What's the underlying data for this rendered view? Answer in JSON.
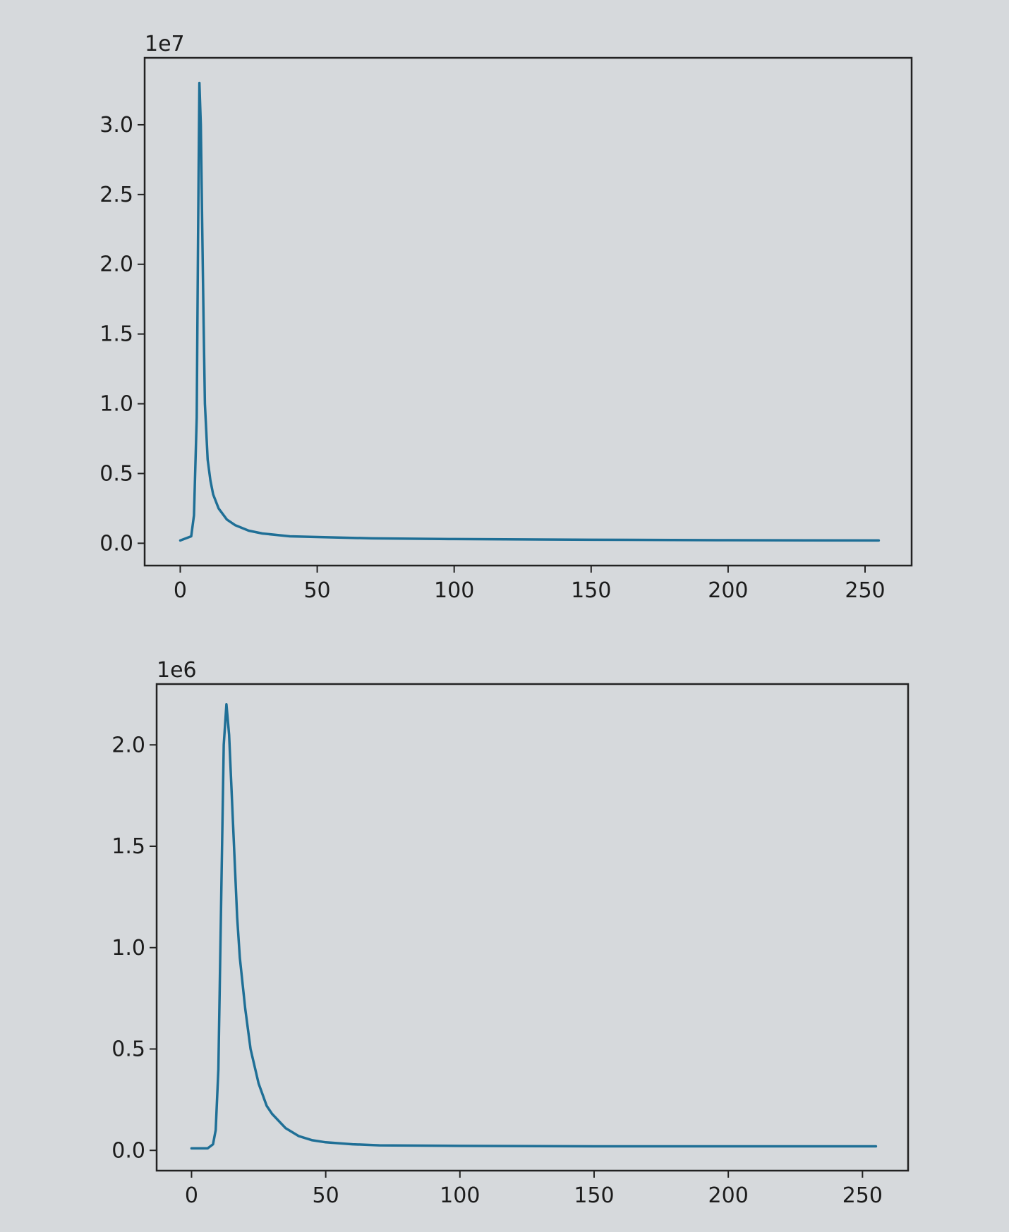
{
  "chart_data": [
    {
      "type": "line",
      "title": "",
      "xlabel": "",
      "ylabel": "",
      "y_offset_label": "1e7",
      "xlim": [
        -13,
        267
      ],
      "ylim": [
        -0.16,
        3.48
      ],
      "xticks": [
        0,
        50,
        100,
        150,
        200,
        250
      ],
      "xtick_labels": [
        "0",
        "50",
        "100",
        "150",
        "200",
        "250"
      ],
      "yticks": [
        0.0,
        0.5,
        1.0,
        1.5,
        2.0,
        2.5,
        3.0
      ],
      "ytick_labels": [
        "0.0",
        "0.5",
        "1.0",
        "1.5",
        "2.0",
        "2.5",
        "3.0"
      ],
      "grid": false,
      "line_color": "#1f6f96",
      "series": [
        {
          "x": [
            0,
            4,
            5,
            6,
            6.5,
            7,
            7.5,
            8,
            8.5,
            9,
            10,
            11,
            12,
            14,
            17,
            20,
            25,
            30,
            40,
            50,
            70,
            100,
            150,
            200,
            255
          ],
          "y": [
            0.02,
            0.05,
            0.2,
            0.9,
            2.2,
            3.3,
            3.0,
            2.3,
            1.6,
            1.0,
            0.6,
            0.45,
            0.35,
            0.25,
            0.17,
            0.13,
            0.09,
            0.07,
            0.05,
            0.045,
            0.035,
            0.03,
            0.025,
            0.022,
            0.02
          ]
        }
      ]
    },
    {
      "type": "line",
      "title": "",
      "xlabel": "",
      "ylabel": "",
      "y_offset_label": "1e6",
      "xlim": [
        -13,
        267
      ],
      "ylim": [
        -0.1,
        2.3
      ],
      "xticks": [
        0,
        50,
        100,
        150,
        200,
        250
      ],
      "xtick_labels": [
        "0",
        "50",
        "100",
        "150",
        "200",
        "250"
      ],
      "yticks": [
        0.0,
        0.5,
        1.0,
        1.5,
        2.0
      ],
      "ytick_labels": [
        "0.0",
        "0.5",
        "1.0",
        "1.5",
        "2.0"
      ],
      "grid": false,
      "line_color": "#1f6f96",
      "series": [
        {
          "x": [
            0,
            6,
            8,
            9,
            10,
            11,
            12,
            13,
            14,
            15,
            16,
            17,
            18,
            20,
            22,
            25,
            28,
            30,
            35,
            40,
            45,
            50,
            60,
            70,
            100,
            150,
            200,
            255
          ],
          "y": [
            0.01,
            0.01,
            0.03,
            0.1,
            0.4,
            1.2,
            2.0,
            2.2,
            2.05,
            1.75,
            1.45,
            1.15,
            0.95,
            0.7,
            0.5,
            0.33,
            0.22,
            0.18,
            0.11,
            0.07,
            0.05,
            0.04,
            0.03,
            0.025,
            0.022,
            0.02,
            0.02,
            0.02
          ]
        }
      ]
    }
  ]
}
